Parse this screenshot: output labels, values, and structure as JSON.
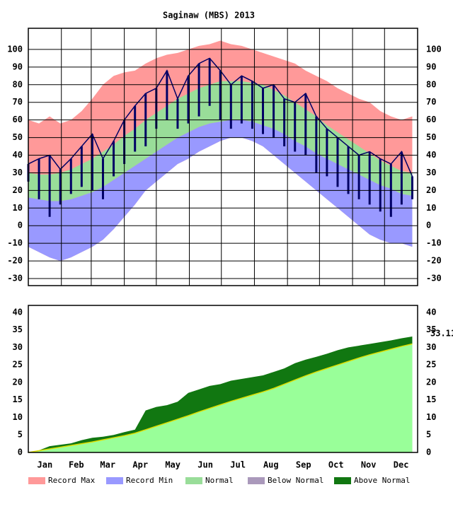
{
  "chart_data": [
    {
      "type": "band",
      "title": "Saginaw (MBS) 2013",
      "x": [
        1,
        11,
        21,
        31,
        41,
        51,
        61,
        71,
        81,
        91,
        101,
        111,
        121,
        131,
        141,
        151,
        161,
        171,
        181,
        191,
        201,
        211,
        221,
        231,
        241,
        251,
        261,
        271,
        281,
        291,
        301,
        311,
        321,
        331,
        341,
        351,
        361
      ],
      "ylim": [
        -34,
        112
      ],
      "yticks": [
        -30,
        -20,
        -10,
        0,
        10,
        20,
        30,
        40,
        50,
        60,
        70,
        80,
        90,
        100
      ],
      "grid": true,
      "record_max": {
        "color": "#ff9999",
        "values": [
          60,
          58,
          62,
          58,
          60,
          65,
          72,
          80,
          85,
          87,
          88,
          92,
          95,
          97,
          98,
          100,
          102,
          103,
          105,
          103,
          102,
          100,
          98,
          96,
          94,
          92,
          88,
          85,
          82,
          78,
          75,
          72,
          70,
          65,
          62,
          60,
          62
        ]
      },
      "record_min": {
        "color": "#9999ff",
        "values": [
          -12,
          -15,
          -18,
          -20,
          -18,
          -15,
          -12,
          -8,
          -2,
          5,
          12,
          20,
          25,
          30,
          35,
          38,
          42,
          45,
          48,
          50,
          50,
          48,
          45,
          40,
          35,
          30,
          25,
          20,
          15,
          10,
          5,
          0,
          -5,
          -8,
          -10,
          -10,
          -12
        ]
      },
      "normal": {
        "color": "#99dd99",
        "high": [
          30,
          29,
          29,
          30,
          32,
          35,
          38,
          42,
          46,
          51,
          55,
          60,
          64,
          68,
          72,
          75,
          78,
          80,
          82,
          82,
          82,
          81,
          80,
          77,
          74,
          70,
          66,
          62,
          57,
          53,
          49,
          45,
          41,
          37,
          34,
          31,
          30
        ],
        "low": [
          16,
          15,
          14,
          14,
          15,
          17,
          19,
          22,
          26,
          30,
          34,
          38,
          42,
          46,
          50,
          53,
          56,
          58,
          59,
          60,
          60,
          59,
          57,
          55,
          52,
          48,
          45,
          41,
          38,
          35,
          32,
          29,
          26,
          23,
          21,
          18,
          17
        ]
      },
      "observed": {
        "color": "#000066",
        "high": [
          35,
          38,
          40,
          32,
          38,
          45,
          52,
          38,
          48,
          60,
          68,
          75,
          78,
          88,
          72,
          85,
          92,
          95,
          88,
          80,
          85,
          82,
          78,
          80,
          72,
          70,
          75,
          62,
          55,
          50,
          45,
          40,
          42,
          38,
          35,
          42,
          28
        ],
        "low": [
          25,
          15,
          5,
          12,
          18,
          22,
          20,
          15,
          28,
          35,
          42,
          45,
          55,
          60,
          55,
          58,
          62,
          68,
          60,
          55,
          58,
          55,
          52,
          50,
          45,
          42,
          40,
          30,
          28,
          22,
          18,
          15,
          12,
          8,
          5,
          12,
          15
        ]
      }
    },
    {
      "type": "cumulative",
      "x": [
        1,
        11,
        21,
        31,
        41,
        51,
        61,
        71,
        81,
        91,
        101,
        111,
        121,
        131,
        141,
        151,
        161,
        171,
        181,
        191,
        201,
        211,
        221,
        231,
        241,
        251,
        261,
        271,
        281,
        291,
        301,
        311,
        321,
        331,
        341,
        351,
        361
      ],
      "xlim": [
        1,
        366
      ],
      "xticks": [
        {
          "value": 1,
          "label": "Jan"
        },
        {
          "value": 32,
          "label": "Feb"
        },
        {
          "value": 60,
          "label": "Mar"
        },
        {
          "value": 91,
          "label": "Apr"
        },
        {
          "value": 121,
          "label": "May"
        },
        {
          "value": 152,
          "label": "Jun"
        },
        {
          "value": 182,
          "label": "Jul"
        },
        {
          "value": 213,
          "label": "Aug"
        },
        {
          "value": 244,
          "label": "Sep"
        },
        {
          "value": 274,
          "label": "Oct"
        },
        {
          "value": 305,
          "label": "Nov"
        },
        {
          "value": 335,
          "label": "Dec"
        }
      ],
      "ylim": [
        0,
        42
      ],
      "yticks": [
        0,
        5,
        10,
        15,
        20,
        25,
        30,
        35,
        40
      ],
      "normal": {
        "color": "#99ff99",
        "values": [
          0,
          0.5,
          1,
          1.5,
          2,
          2.5,
          3,
          3.6,
          4.2,
          4.8,
          5.5,
          6.5,
          7.5,
          8.5,
          9.5,
          10.5,
          11.6,
          12.6,
          13.6,
          14.6,
          15.5,
          16.4,
          17.3,
          18.3,
          19.5,
          20.7,
          21.9,
          23,
          24,
          25,
          26,
          27,
          27.9,
          28.7,
          29.5,
          30.3,
          31
        ]
      },
      "observed": {
        "color": "#117711",
        "values": [
          0,
          0.6,
          1.8,
          2.2,
          2.6,
          3.5,
          4.2,
          4.5,
          5,
          5.8,
          6.5,
          12,
          13,
          13.5,
          14.5,
          17,
          18,
          19,
          19.5,
          20.5,
          21,
          21.5,
          22,
          23,
          24,
          25.5,
          26.5,
          27.3,
          28.2,
          29.2,
          30,
          30.5,
          31,
          31.5,
          32,
          32.6,
          33.11
        ]
      }
    }
  ],
  "legend": [
    {
      "label": "Record Max",
      "color": "#ff9999"
    },
    {
      "label": "Record Min",
      "color": "#9999ff"
    },
    {
      "label": "Normal",
      "color": "#99dd99"
    },
    {
      "label": "Below Normal",
      "color": "#aa99bb"
    },
    {
      "label": "Above Normal",
      "color": "#117711"
    }
  ]
}
